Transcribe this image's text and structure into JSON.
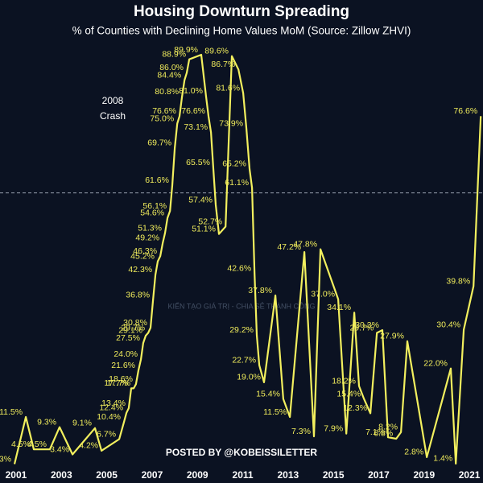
{
  "chart_data": {
    "type": "line",
    "title": "Housing Downturn Spreading",
    "subtitle": "% of Counties with Declining Home Values MoM (Source: Zillow ZHVI)",
    "annotation": [
      "2008",
      "Crash"
    ],
    "credit": "POSTED BY @KOBEISSILETTER",
    "watermark": "KIẾN TẠO GIÁ TRỊ - CHIA SẺ THÀNH CÔNG",
    "x": [
      2000.93,
      2001.43,
      2001.78,
      2002.49,
      2002.92,
      2003.49,
      2004.48,
      2004.77,
      2005.55,
      2005.76,
      2005.87,
      2005.97,
      2006.08,
      2006.19,
      2006.29,
      2006.4,
      2006.51,
      2006.61,
      2006.72,
      2006.83,
      2006.93,
      2007.04,
      2007.15,
      2007.25,
      2007.36,
      2007.47,
      2007.57,
      2007.68,
      2007.79,
      2007.89,
      2008.0,
      2008.11,
      2008.21,
      2008.32,
      2008.43,
      2008.53,
      2008.64,
      2009.17,
      2009.38,
      2009.49,
      2009.6,
      2009.7,
      2009.81,
      2009.95,
      2010.24,
      2010.52,
      2010.81,
      2011.02,
      2011.16,
      2011.3,
      2011.41,
      2011.52,
      2011.62,
      2011.73,
      2011.94,
      2012.44,
      2012.79,
      2013.08,
      2013.72,
      2014.14,
      2014.43,
      2015.21,
      2015.57,
      2015.92,
      2016.13,
      2016.35,
      2016.63,
      2016.92,
      2017.16,
      2017.41,
      2017.77,
      2017.98,
      2018.26,
      2019.12,
      2020.18,
      2020.4,
      2020.75,
      2021.18,
      2021.5
    ],
    "series": [
      {
        "color": "#f2ef5e",
        "values": [
          1.3,
          11.5,
          4.5,
          4.5,
          9.3,
          3.4,
          9.1,
          4.2,
          6.7,
          10.4,
          12.4,
          13.4,
          17.7,
          17.7,
          18.6,
          21.6,
          24.0,
          27.5,
          29.1,
          29.7,
          30.8,
          36.8,
          42.3,
          45.2,
          46.3,
          49.2,
          51.3,
          54.6,
          56.1,
          61.6,
          69.7,
          75.0,
          76.6,
          80.8,
          84.4,
          86.0,
          88.9,
          89.9,
          81.0,
          76.6,
          73.1,
          65.5,
          57.4,
          51.1,
          52.7,
          89.6,
          86.7,
          81.6,
          73.9,
          65.2,
          61.1,
          42.6,
          29.2,
          22.7,
          19.0,
          37.8,
          15.4,
          11.5,
          47.2,
          7.3,
          47.8,
          37.0,
          7.9,
          34.1,
          18.2,
          15.4,
          12.3,
          29.7,
          30.3,
          7.1,
          6.8,
          8.2,
          27.9,
          2.8,
          22.0,
          1.4,
          30.4,
          39.8,
          76.6
        ],
        "value_labels": [
          "1.3%",
          "11.5%",
          "4.5%",
          "4.5%",
          "9.3%",
          "3.4%",
          "9.1%",
          "4.2%",
          "6.7%",
          "10.4%",
          "12.4%",
          "13.4%",
          "17.7%",
          "17.7%",
          "18.6%",
          "21.6%",
          "24.0%",
          "27.5%",
          "29.1%",
          "29.7%",
          "30.8%",
          "36.8%",
          "42.3%",
          "45.2%",
          "46.3%",
          "49.2%",
          "51.3%",
          "54.6%",
          "56.1%",
          "61.6%",
          "69.7%",
          "75.0%",
          "76.6%",
          "80.8%",
          "84.4%",
          "86.0%",
          "88.9%",
          "89.9%",
          "81.0%",
          "76.6%",
          "73.1%",
          "65.5%",
          "57.4%",
          "51.1%",
          "52.7%",
          "89.6%",
          "86.7%",
          "81.6%",
          "73.9%",
          "65.2%",
          "61.1%",
          "42.6%",
          "29.2%",
          "22.7%",
          "19.0%",
          "37.8%",
          "15.4%",
          "11.5%",
          "47.2%",
          "7.3%",
          "47.8%",
          "37.0%",
          "7.9%",
          "34.1%",
          "18.2%",
          "15.4%",
          "12.3%",
          "29.7%",
          "30.3%",
          "7.1%",
          "6.8%",
          "8.2%",
          "27.9%",
          "2.8%",
          "22.0%",
          "1.4%",
          "30.4%",
          "39.8%",
          "76.6%"
        ]
      }
    ],
    "xlim": [
      2000.29,
      2021.6
    ],
    "xticks": [
      2001,
      2003,
      2005,
      2007,
      2009,
      2011,
      2013,
      2015,
      2017,
      2019,
      2021
    ],
    "ylim": [
      0,
      100
    ],
    "hline": 60
  }
}
